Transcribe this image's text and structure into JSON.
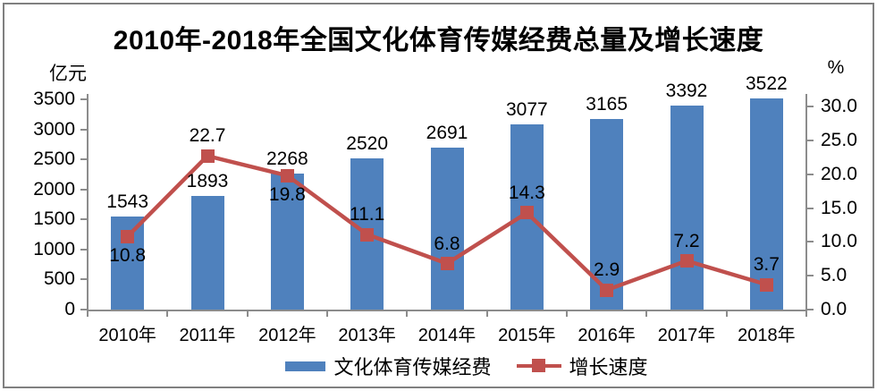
{
  "title": "2010年-2018年全国文化体育传媒经费总量及增长速度",
  "left_axis": {
    "unit": "亿元",
    "tick_values": [
      0,
      500,
      1000,
      1500,
      2000,
      2500,
      3000,
      3500
    ],
    "tick_labels": [
      "0",
      "500",
      "1000",
      "1500",
      "2000",
      "2500",
      "3000",
      "3500"
    ],
    "max": 3500
  },
  "right_axis": {
    "unit": "%",
    "tick_values": [
      0,
      5,
      10,
      15,
      20,
      25,
      30
    ],
    "tick_labels": [
      "0.0",
      "5.0",
      "10.0",
      "15.0",
      "20.0",
      "25.0",
      "30.0"
    ],
    "max": 30
  },
  "chart_data": {
    "type": "bar+line combo",
    "title": "2010年-2018年全国文化体育传媒经费总量及增长速度",
    "categories": [
      "2010年",
      "2011年",
      "2012年",
      "2013年",
      "2014年",
      "2015年",
      "2016年",
      "2017年",
      "2018年"
    ],
    "series": [
      {
        "name": "文化体育传媒经费",
        "type": "bar",
        "axis": "left",
        "unit": "亿元",
        "color": "#4F81BD",
        "values": [
          1543,
          1893,
          2268,
          2520,
          2691,
          3077,
          3165,
          3392,
          3522
        ]
      },
      {
        "name": "增长速度",
        "type": "line",
        "axis": "right",
        "unit": "%",
        "color": "#C0504D",
        "values": [
          10.8,
          22.7,
          19.8,
          11.1,
          6.8,
          14.3,
          2.9,
          7.2,
          3.7
        ],
        "label_positions": [
          "below",
          "above",
          "below",
          "above",
          "above",
          "above",
          "above",
          "above",
          "above"
        ]
      }
    ],
    "left_ylim": [
      0,
      3500
    ],
    "right_ylim": [
      0,
      30
    ],
    "grid": false,
    "data_labels": true,
    "legend_position": "bottom"
  },
  "legend": {
    "items": [
      {
        "label": "文化体育传媒经费",
        "color": "#4F81BD",
        "swatch": "bar"
      },
      {
        "label": "增长速度",
        "color": "#C0504D",
        "swatch": "line-square-marker"
      }
    ]
  },
  "colors": {
    "bar": "#4F81BD",
    "line": "#C0504D",
    "axis": "#8C8C8C",
    "text": "#000000",
    "frame_border": "#808080",
    "background": "#FFFFFF"
  }
}
